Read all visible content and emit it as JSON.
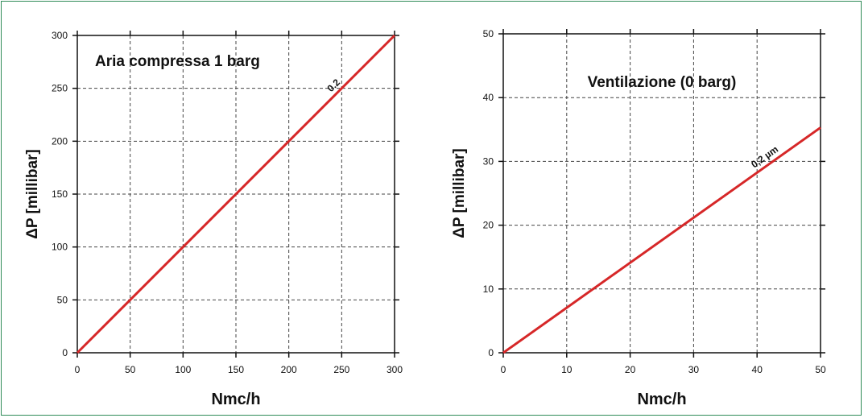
{
  "chart_data": [
    {
      "type": "line",
      "title": "Aria compressa 1 barg",
      "xlabel": "Nmc/h",
      "ylabel": "ΔP [millibar]",
      "xlim": [
        0,
        300
      ],
      "ylim": [
        0,
        300
      ],
      "xticks": [
        "0",
        "50",
        "100",
        "150",
        "200",
        "250",
        "300"
      ],
      "yticks": [
        "0",
        "50",
        "100",
        "150",
        "200",
        "250",
        "300"
      ],
      "grid": true,
      "series": [
        {
          "name": "0.2",
          "color": "#d62728",
          "x": [
            0,
            300
          ],
          "y": [
            0,
            300
          ]
        }
      ],
      "line_label": "0.2"
    },
    {
      "type": "line",
      "title": "Ventilazione (0 barg)",
      "xlabel": "Nmc/h",
      "ylabel": "ΔP [millibar]",
      "xlim": [
        0,
        50
      ],
      "ylim": [
        0,
        50
      ],
      "xticks": [
        "0",
        "10",
        "20",
        "30",
        "40",
        "50"
      ],
      "yticks": [
        "0",
        "10",
        "20",
        "30",
        "40",
        "50"
      ],
      "grid": true,
      "series": [
        {
          "name": "0,2 µm",
          "color": "#d62728",
          "x": [
            0,
            50
          ],
          "y": [
            0,
            35.3
          ]
        }
      ],
      "line_label": "0,2 µm"
    }
  ]
}
